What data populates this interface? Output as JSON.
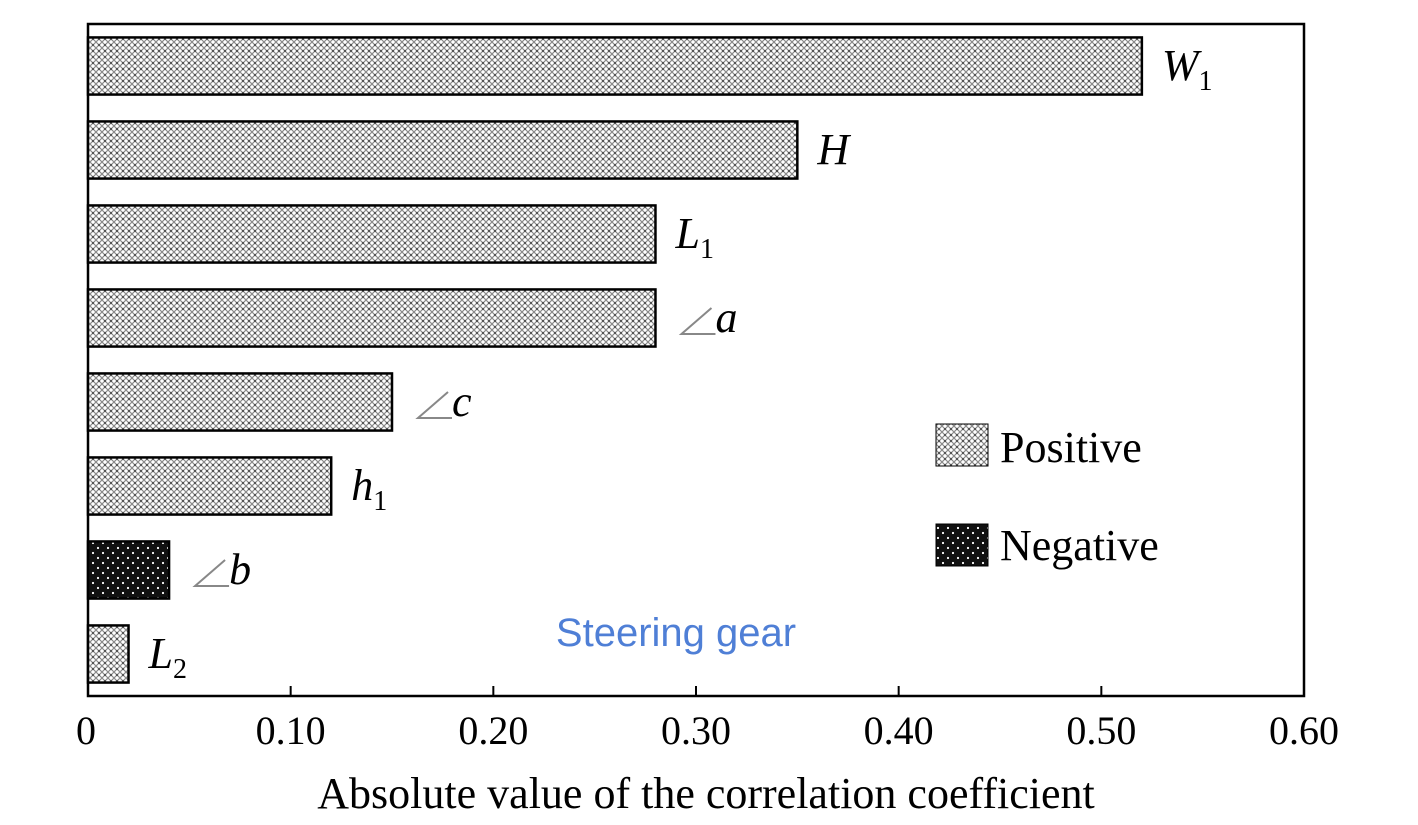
{
  "chart_data": {
    "type": "bar",
    "orientation": "horizontal",
    "title": "",
    "xlabel": "Absolute value of the correlation coefficient",
    "ylabel": "",
    "xlim": [
      0,
      0.6
    ],
    "xticks": [
      0,
      0.1,
      0.2,
      0.3,
      0.4,
      0.5,
      0.6
    ],
    "xtick_labels": [
      "0",
      "0.10",
      "0.20",
      "0.30",
      "0.40",
      "0.50",
      "0.60"
    ],
    "grid": false,
    "legend": {
      "placement": "right",
      "entries": [
        {
          "name": "Positive",
          "pattern": "positive"
        },
        {
          "name": "Negative",
          "pattern": "negative"
        }
      ]
    },
    "annotation": {
      "text": "Steering gear",
      "color": "#4f7fd6"
    },
    "bars": [
      {
        "label": "W",
        "label_sub": "1",
        "angle": false,
        "value": 0.52,
        "sign": "Positive"
      },
      {
        "label": "H",
        "label_sub": "",
        "angle": false,
        "value": 0.35,
        "sign": "Positive"
      },
      {
        "label": "L",
        "label_sub": "1",
        "angle": false,
        "value": 0.28,
        "sign": "Positive"
      },
      {
        "label": "a",
        "label_sub": "",
        "angle": true,
        "value": 0.28,
        "sign": "Positive"
      },
      {
        "label": "c",
        "label_sub": "",
        "angle": true,
        "value": 0.15,
        "sign": "Positive"
      },
      {
        "label": "h",
        "label_sub": "1",
        "angle": false,
        "value": 0.12,
        "sign": "Positive"
      },
      {
        "label": "b",
        "label_sub": "",
        "angle": true,
        "value": 0.04,
        "sign": "Negative"
      },
      {
        "label": "L",
        "label_sub": "2",
        "angle": false,
        "value": 0.02,
        "sign": "Positive"
      }
    ]
  }
}
